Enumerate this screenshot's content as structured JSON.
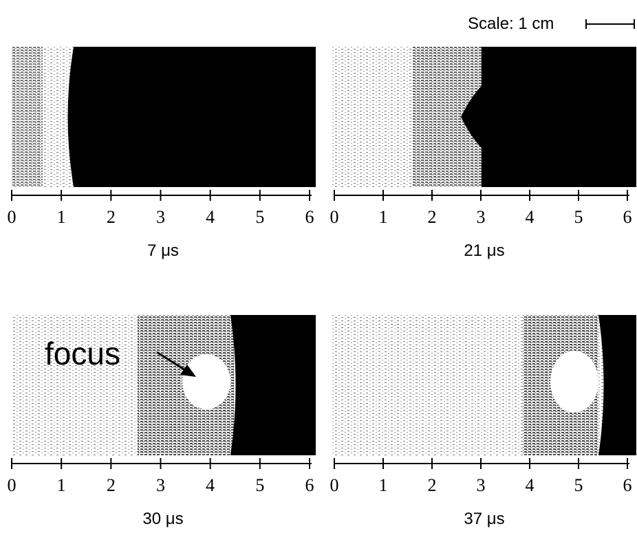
{
  "scale_label": "Scale: 1 cm",
  "annotation": "focus",
  "panels": [
    {
      "label": "7 μs",
      "ticks": [
        0,
        1,
        2,
        3,
        4,
        5,
        6
      ]
    },
    {
      "label": "21 μs",
      "ticks": [
        0,
        1,
        2,
        3,
        4,
        5,
        6
      ]
    },
    {
      "label": "30 μs",
      "ticks": [
        0,
        1,
        2,
        3,
        4,
        5,
        6
      ]
    },
    {
      "label": "37 μs",
      "ticks": [
        0,
        1,
        2,
        3,
        4,
        5,
        6
      ]
    }
  ]
}
